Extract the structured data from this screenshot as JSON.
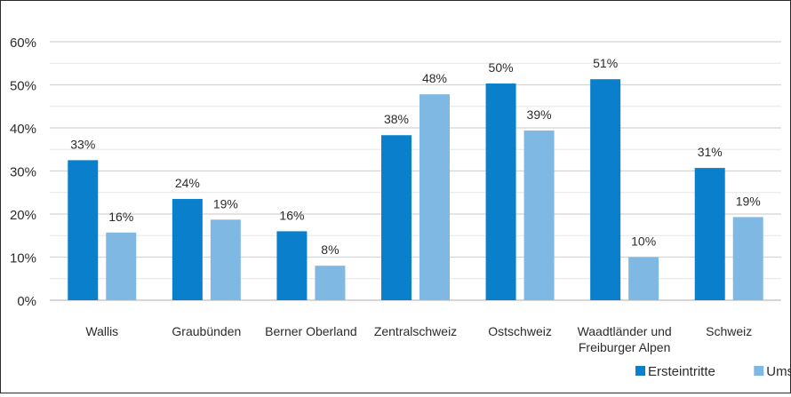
{
  "chart_data": {
    "type": "bar",
    "categories": [
      "Wallis",
      "Graubünden",
      "Berner Oberland",
      "Zentralschweiz",
      "Ostschweiz",
      "Waadtländer und Freiburger Alpen",
      "Schweiz"
    ],
    "category_lines": [
      [
        "Wallis"
      ],
      [
        "Graubünden"
      ],
      [
        "Berner Oberland"
      ],
      [
        "Zentralschweiz"
      ],
      [
        "Ostschweiz"
      ],
      [
        "Waadtländer und",
        "Freiburger Alpen"
      ],
      [
        "Schweiz"
      ]
    ],
    "series": [
      {
        "name": "Ersteintritte",
        "color": "#0a7fcc",
        "values": [
          0.325,
          0.235,
          0.16,
          0.383,
          0.503,
          0.513,
          0.307
        ],
        "labels": [
          "33%",
          "24%",
          "16%",
          "38%",
          "50%",
          "51%",
          "31%"
        ]
      },
      {
        "name": "Umsatz",
        "color": "#7fb8e3",
        "values": [
          0.157,
          0.187,
          0.08,
          0.478,
          0.394,
          0.1,
          0.193
        ],
        "labels": [
          "16%",
          "19%",
          "8%",
          "48%",
          "39%",
          "10%",
          "19%"
        ]
      }
    ],
    "ylim": [
      0,
      0.6
    ],
    "yticks": [
      0,
      0.1,
      0.2,
      0.3,
      0.4,
      0.5,
      0.6
    ],
    "ytick_labels": [
      "0%",
      "10%",
      "20%",
      "30%",
      "40%",
      "50%",
      "60%"
    ],
    "minor_gridlines": true,
    "grid": true,
    "legend_position": "bottom-right",
    "title": "",
    "xlabel": "",
    "ylabel": ""
  }
}
